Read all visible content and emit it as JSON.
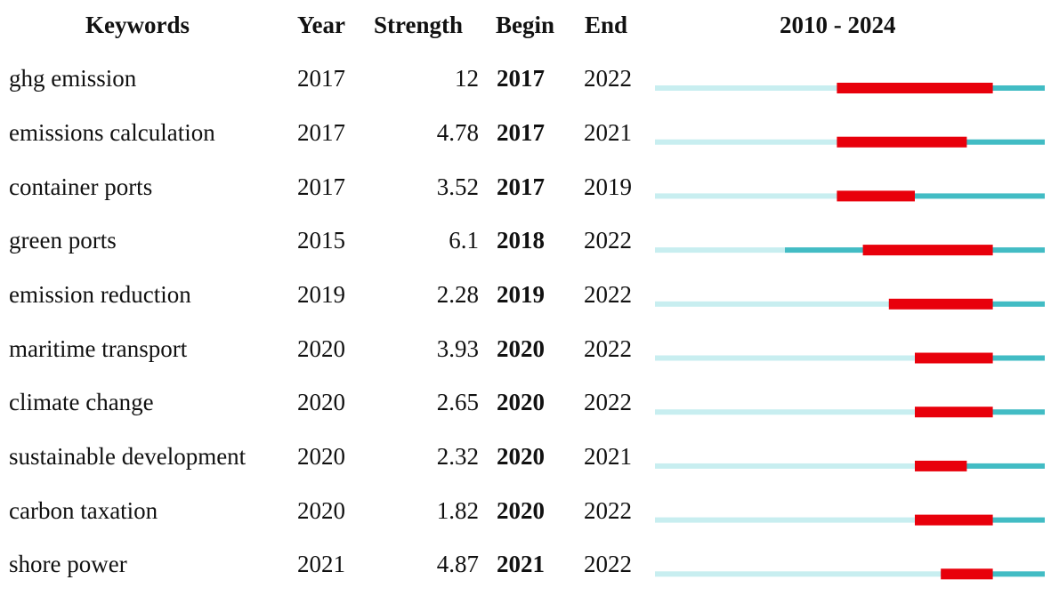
{
  "header": {
    "keywords": "Keywords",
    "year": "Year",
    "strength": "Strength",
    "begin": "Begin",
    "end": "End",
    "range": "2010 - 2024"
  },
  "colors": {
    "before": "#c8eef0",
    "active": "#42bcc4",
    "burst": "#e8000b"
  },
  "chart_data": {
    "type": "table",
    "timeline_start": 2010,
    "timeline_end": 2024,
    "rows": [
      {
        "keyword": "ghg emission",
        "year": "2017",
        "strength": "12",
        "begin": "2017",
        "end": "2022"
      },
      {
        "keyword": "emissions calculation",
        "year": "2017",
        "strength": "4.78",
        "begin": "2017",
        "end": "2021"
      },
      {
        "keyword": "container ports",
        "year": "2017",
        "strength": "3.52",
        "begin": "2017",
        "end": "2019"
      },
      {
        "keyword": "green ports",
        "year": "2015",
        "strength": "6.1",
        "begin": "2018",
        "end": "2022"
      },
      {
        "keyword": "emission reduction",
        "year": "2019",
        "strength": "2.28",
        "begin": "2019",
        "end": "2022"
      },
      {
        "keyword": "maritime transport",
        "year": "2020",
        "strength": "3.93",
        "begin": "2020",
        "end": "2022"
      },
      {
        "keyword": "climate change",
        "year": "2020",
        "strength": "2.65",
        "begin": "2020",
        "end": "2022"
      },
      {
        "keyword": "sustainable development",
        "year": "2020",
        "strength": "2.32",
        "begin": "2020",
        "end": "2021"
      },
      {
        "keyword": "carbon taxation",
        "year": "2020",
        "strength": "1.82",
        "begin": "2020",
        "end": "2022"
      },
      {
        "keyword": "shore power",
        "year": "2021",
        "strength": "4.87",
        "begin": "2021",
        "end": "2022"
      }
    ]
  }
}
